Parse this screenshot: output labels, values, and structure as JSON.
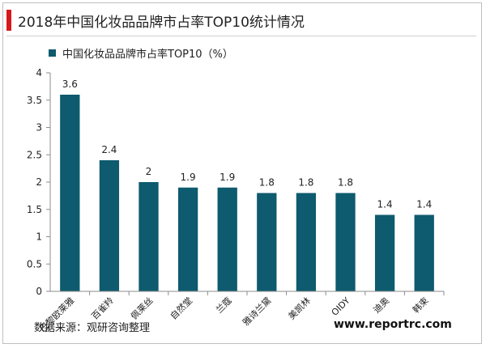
{
  "page": {
    "title": "2018年中国化妆品品牌市占率TOP10统计情况",
    "source": "数据来源：观研咨询整理",
    "watermark_url": "www.reportrc.com"
  },
  "colors": {
    "bar": "#0e5a6e",
    "accent": "#d7191c",
    "axis": "#8c8c8c"
  },
  "chart_data": {
    "type": "bar",
    "title": "",
    "xlabel": "",
    "ylabel": "",
    "categories": [
      "巴黎欧莱雅",
      "百雀羚",
      "佩莱丝",
      "自然堂",
      "兰蔻",
      "雅诗兰黛",
      "美凯林",
      "OIDY",
      "迪奥",
      "韩束"
    ],
    "series": [
      {
        "name": "中国化妆品品牌市占率TOP10（%）",
        "values": [
          3.6,
          2.4,
          2.0,
          1.9,
          1.9,
          1.8,
          1.8,
          1.8,
          1.4,
          1.4
        ]
      }
    ],
    "data_labels": [
      "3.6",
      "2.4",
      "2",
      "1.9",
      "1.9",
      "1.8",
      "1.8",
      "1.8",
      "1.4",
      "1.4"
    ],
    "ylim": [
      0,
      4
    ],
    "yticks": [
      "0",
      "0.5",
      "1",
      "1.5",
      "2",
      "2.5",
      "3",
      "3.5",
      "4"
    ],
    "grid": false,
    "legend_position": "top-left"
  }
}
